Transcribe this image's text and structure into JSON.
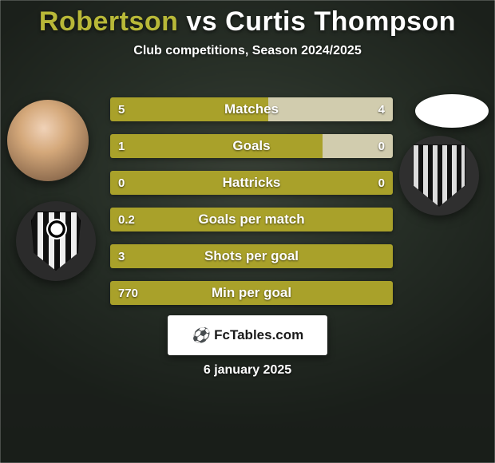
{
  "title": {
    "player1": "Robertson",
    "vs": "vs",
    "player2": "Curtis Thompson",
    "color_p1": "#b8b838",
    "color_vs": "#ffffff",
    "color_p2": "#ffffff"
  },
  "subtitle": "Club competitions, Season 2024/2025",
  "colors": {
    "bar_p1": "#a9a12a",
    "bar_p2": "#d1ccae",
    "bar_label": "#ffffff"
  },
  "bars": [
    {
      "label": "Matches",
      "left": "5",
      "right": "4",
      "left_pct": 56,
      "right_pct": 44
    },
    {
      "label": "Goals",
      "left": "1",
      "right": "0",
      "left_pct": 75,
      "right_pct": 25
    },
    {
      "label": "Hattricks",
      "left": "0",
      "right": "0",
      "left_pct": 100,
      "right_pct": 0
    },
    {
      "label": "Goals per match",
      "left": "0.2",
      "right": "",
      "left_pct": 100,
      "right_pct": 0
    },
    {
      "label": "Shots per goal",
      "left": "3",
      "right": "",
      "left_pct": 100,
      "right_pct": 0
    },
    {
      "label": "Min per goal",
      "left": "770",
      "right": "",
      "left_pct": 100,
      "right_pct": 0
    }
  ],
  "footer_brand": "FcTables.com",
  "date": "6 january 2025"
}
